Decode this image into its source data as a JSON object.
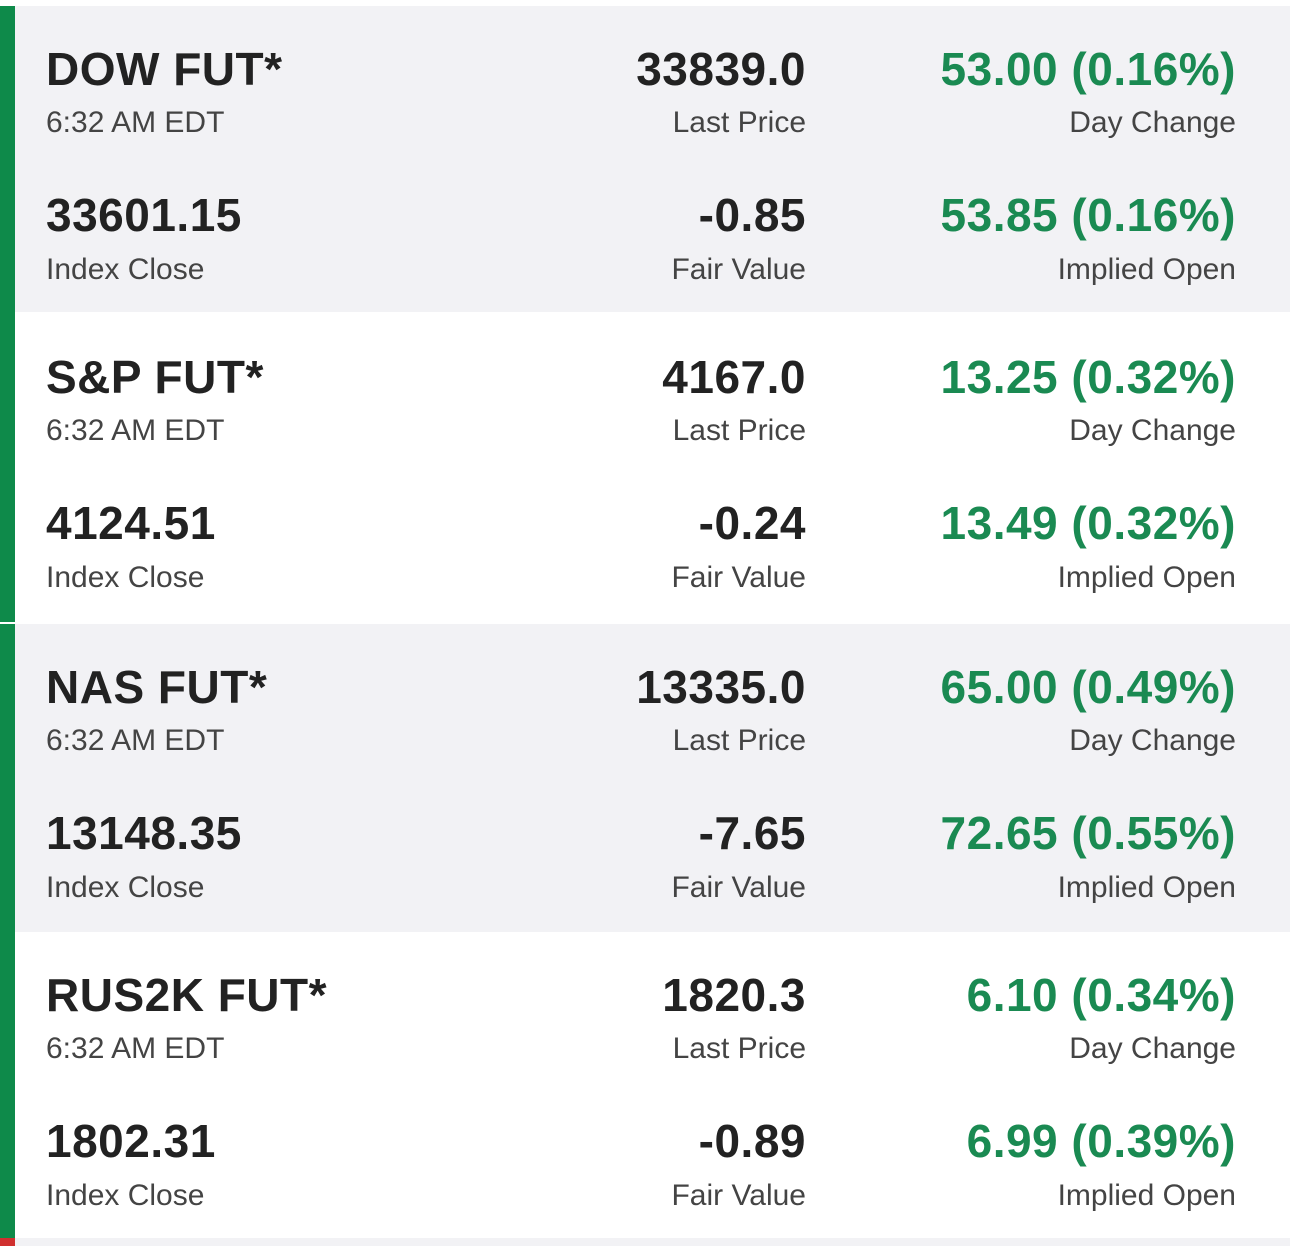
{
  "colors": {
    "accent_green": "#0e8a4a",
    "accent_red": "#d0302f",
    "positive_text": "#1a8a52"
  },
  "quotes": [
    {
      "name": "DOW FUT*",
      "time": "6:32 AM EDT",
      "last_price": "33839.0",
      "last_price_label": "Last Price",
      "day_change": "53.00 (0.16%)",
      "day_change_label": "Day Change",
      "index_close": "33601.15",
      "index_close_label": "Index Close",
      "fair_value": "-0.85",
      "fair_value_label": "Fair Value",
      "implied_open": "53.85 (0.16%)",
      "implied_open_label": "Implied Open"
    },
    {
      "name": "S&P FUT*",
      "time": "6:32 AM EDT",
      "last_price": "4167.0",
      "last_price_label": "Last Price",
      "day_change": "13.25 (0.32%)",
      "day_change_label": "Day Change",
      "index_close": "4124.51",
      "index_close_label": "Index Close",
      "fair_value": "-0.24",
      "fair_value_label": "Fair Value",
      "implied_open": "13.49 (0.32%)",
      "implied_open_label": "Implied Open"
    },
    {
      "name": "NAS FUT*",
      "time": "6:32 AM EDT",
      "last_price": "13335.0",
      "last_price_label": "Last Price",
      "day_change": "65.00 (0.49%)",
      "day_change_label": "Day Change",
      "index_close": "13148.35",
      "index_close_label": "Index Close",
      "fair_value": "-7.65",
      "fair_value_label": "Fair Value",
      "implied_open": "72.65 (0.55%)",
      "implied_open_label": "Implied Open"
    },
    {
      "name": "RUS2K FUT*",
      "time": "6:32 AM EDT",
      "last_price": "1820.3",
      "last_price_label": "Last Price",
      "day_change": "6.10 (0.34%)",
      "day_change_label": "Day Change",
      "index_close": "1802.31",
      "index_close_label": "Index Close",
      "fair_value": "-0.89",
      "fair_value_label": "Fair Value",
      "implied_open": "6.99 (0.39%)",
      "implied_open_label": "Implied Open"
    }
  ]
}
